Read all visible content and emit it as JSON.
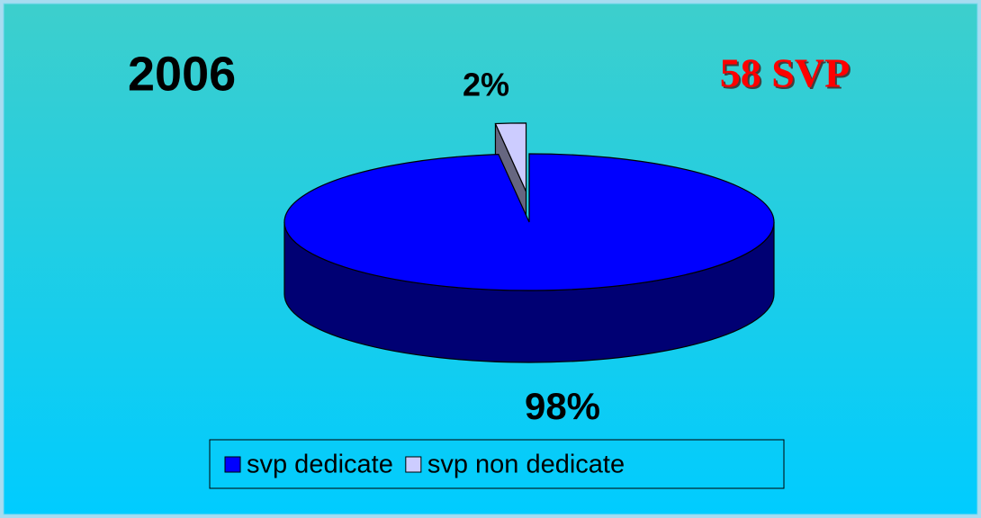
{
  "chart_data": {
    "type": "pie",
    "title": "2006",
    "annotation": "58 SVP",
    "categories": [
      "svp dedicate",
      "svp non dedicate"
    ],
    "values": [
      98,
      2
    ],
    "value_labels": [
      "98%",
      "2%"
    ],
    "colors": [
      "#0000ff",
      "#ccccff"
    ],
    "legend": "bottom"
  }
}
